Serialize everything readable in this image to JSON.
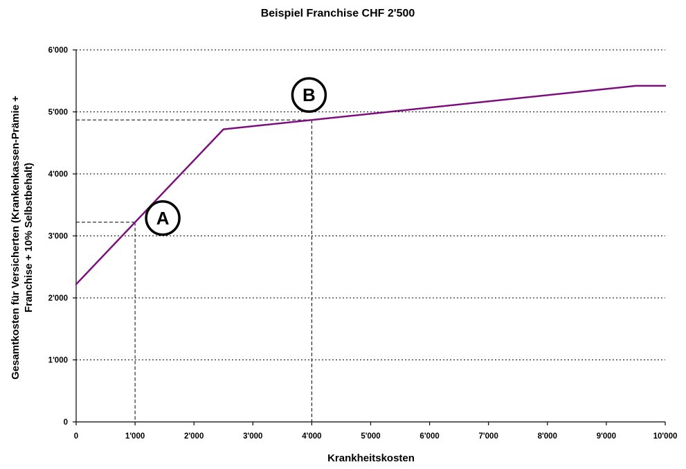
{
  "chart_data": {
    "type": "line",
    "title": "Beispiel Franchise CHF 2'500",
    "xlabel": "Krankheitskosten",
    "ylabel_lines": [
      "Gesamtkosten für Versicherten (Krankenkassen-Prämie +",
      "Franchise + 10% Selbstbehalt)"
    ],
    "xlim": [
      0,
      10000
    ],
    "ylim": [
      0,
      6000
    ],
    "x_ticks": [
      "0",
      "1'000",
      "2'000",
      "3'000",
      "4'000",
      "5'000",
      "6'000",
      "7'000",
      "8'000",
      "9'000",
      "10'000"
    ],
    "y_ticks": [
      "0",
      "1'000",
      "2'000",
      "3'000",
      "4'000",
      "5'000",
      "6'000"
    ],
    "grid": true,
    "series": [
      {
        "color": "#7B0F7E",
        "x": [
          0,
          2500,
          9500,
          10000
        ],
        "y": [
          2220,
          4720,
          5420,
          5420
        ]
      }
    ],
    "annotations": [
      {
        "label": "A",
        "point": [
          1000,
          3220
        ]
      },
      {
        "label": "B",
        "point": [
          4000,
          4870
        ]
      }
    ]
  }
}
